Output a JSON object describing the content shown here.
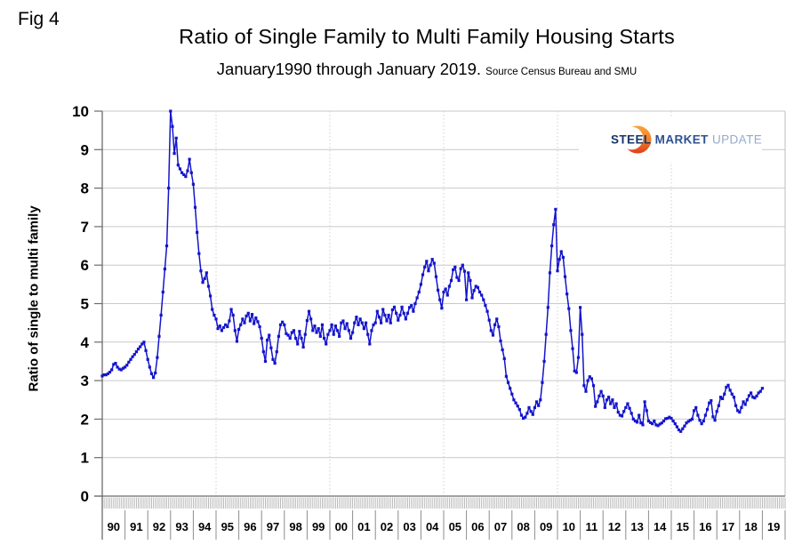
{
  "figure_label": "Fig 4",
  "title": "Ratio of Single Family to Multi Family Housing Starts",
  "subtitle": "January1990 through January 2019.",
  "source_note": "Source Census Bureau and SMU",
  "logo": {
    "word1": "STEEL",
    "word2": "MARKET",
    "word3": "UPDATE",
    "navy": "#17356b",
    "mid_blue": "#2c5191",
    "light_blue": "#94aacb",
    "orange_top": "#f8a53e",
    "orange_mid": "#ef7d24",
    "orange_bottom": "#e03c1c"
  },
  "y_axis": {
    "label": "Ratio of single to multi family",
    "ticks": [
      0,
      1,
      2,
      3,
      4,
      5,
      6,
      7,
      8,
      9,
      10
    ]
  },
  "chart_data": {
    "type": "line",
    "title": "Ratio of Single Family to Multi Family Housing Starts",
    "subtitle": "January1990 through January 2019. Source Census Bureau and SMU",
    "ylabel": "Ratio of single to multi family",
    "ylim": [
      0,
      10
    ],
    "y_ticks": [
      0,
      1,
      2,
      3,
      4,
      5,
      6,
      7,
      8,
      9,
      10
    ],
    "x_start": "1990-01",
    "x_end": "2019-01",
    "frequency": "monthly",
    "x_labels": [
      "90",
      "91",
      "92",
      "93",
      "94",
      "95",
      "96",
      "97",
      "98",
      "99",
      "00",
      "01",
      "02",
      "03",
      "04",
      "05",
      "06",
      "07",
      "08",
      "09",
      "10",
      "11",
      "12",
      "13",
      "14",
      "15",
      "16",
      "17",
      "18",
      "19"
    ],
    "grid": {
      "horizontal": "solid at each integer",
      "vertical_dotted_years": [
        1995,
        2000,
        2005,
        2010,
        2015
      ]
    },
    "legend": "none",
    "series_color": "#1414cc",
    "values": [
      3.12,
      3.15,
      3.15,
      3.18,
      3.22,
      3.28,
      3.42,
      3.45,
      3.35,
      3.3,
      3.28,
      3.32,
      3.35,
      3.4,
      3.48,
      3.55,
      3.62,
      3.68,
      3.75,
      3.82,
      3.88,
      3.95,
      4.0,
      3.78,
      3.55,
      3.35,
      3.18,
      3.08,
      3.2,
      3.6,
      4.15,
      4.7,
      5.3,
      5.9,
      6.5,
      8.0,
      10.0,
      9.6,
      8.9,
      9.3,
      8.6,
      8.5,
      8.4,
      8.35,
      8.3,
      8.45,
      8.75,
      8.4,
      8.1,
      7.5,
      6.85,
      6.3,
      5.85,
      5.55,
      5.65,
      5.8,
      5.45,
      5.2,
      4.85,
      4.7,
      4.6,
      4.35,
      4.42,
      4.3,
      4.38,
      4.45,
      4.4,
      4.55,
      4.85,
      4.7,
      4.3,
      4.02,
      4.33,
      4.45,
      4.6,
      4.5,
      4.68,
      4.75,
      4.55,
      4.72,
      4.48,
      4.63,
      4.53,
      4.4,
      4.1,
      3.75,
      3.5,
      4.05,
      4.18,
      3.85,
      3.55,
      3.45,
      3.75,
      4.15,
      4.45,
      4.52,
      4.45,
      4.22,
      4.18,
      4.1,
      4.25,
      4.3,
      4.1,
      3.95,
      4.28,
      4.1,
      3.87,
      4.2,
      4.56,
      4.8,
      4.6,
      4.3,
      4.42,
      4.25,
      4.35,
      4.15,
      4.45,
      4.1,
      3.95,
      4.2,
      4.3,
      4.45,
      4.2,
      4.42,
      4.3,
      4.15,
      4.5,
      4.55,
      4.35,
      4.48,
      4.3,
      4.1,
      4.25,
      4.5,
      4.65,
      4.45,
      4.6,
      4.5,
      4.35,
      4.5,
      4.2,
      3.95,
      4.3,
      4.45,
      4.5,
      4.8,
      4.65,
      4.5,
      4.85,
      4.7,
      4.55,
      4.7,
      4.5,
      4.84,
      4.91,
      4.75,
      4.57,
      4.7,
      4.91,
      4.75,
      4.6,
      4.75,
      4.9,
      4.95,
      4.8,
      5.0,
      5.15,
      5.3,
      5.5,
      5.75,
      5.95,
      6.1,
      5.85,
      6.0,
      6.15,
      6.05,
      5.7,
      5.35,
      5.1,
      4.88,
      5.3,
      5.38,
      5.22,
      5.45,
      5.6,
      5.88,
      5.95,
      5.68,
      5.6,
      5.91,
      6.0,
      5.84,
      5.1,
      5.8,
      5.6,
      5.15,
      5.34,
      5.45,
      5.42,
      5.3,
      5.22,
      5.1,
      4.95,
      4.8,
      4.57,
      4.3,
      4.18,
      4.45,
      4.6,
      4.4,
      4.03,
      3.8,
      3.57,
      3.11,
      2.95,
      2.8,
      2.65,
      2.5,
      2.42,
      2.34,
      2.25,
      2.1,
      2.02,
      2.05,
      2.15,
      2.3,
      2.2,
      2.12,
      2.3,
      2.45,
      2.35,
      2.5,
      2.95,
      3.5,
      4.2,
      4.9,
      5.8,
      6.5,
      7.05,
      7.45,
      5.85,
      6.15,
      6.35,
      6.2,
      5.7,
      5.25,
      4.87,
      4.3,
      3.83,
      3.25,
      3.21,
      3.6,
      4.9,
      4.2,
      2.87,
      2.72,
      3.0,
      3.1,
      3.05,
      2.87,
      2.33,
      2.45,
      2.6,
      2.72,
      2.6,
      2.3,
      2.5,
      2.57,
      2.4,
      2.5,
      2.3,
      2.4,
      2.18,
      2.1,
      2.08,
      2.2,
      2.3,
      2.4,
      2.28,
      2.15,
      2.0,
      1.95,
      1.92,
      2.1,
      1.9,
      1.85,
      2.45,
      2.22,
      1.95,
      1.91,
      1.88,
      1.95,
      1.85,
      1.83,
      1.87,
      1.9,
      1.95,
      2.01,
      2.02,
      2.05,
      2.02,
      1.95,
      1.88,
      1.8,
      1.72,
      1.68,
      1.75,
      1.82,
      1.9,
      1.94,
      1.97,
      2.0,
      2.22,
      2.3,
      2.1,
      1.97,
      1.88,
      1.95,
      2.1,
      2.25,
      2.42,
      2.48,
      2.06,
      1.97,
      2.2,
      2.35,
      2.57,
      2.53,
      2.65,
      2.83,
      2.88,
      2.75,
      2.65,
      2.57,
      2.35,
      2.22,
      2.18,
      2.3,
      2.45,
      2.38,
      2.5,
      2.61,
      2.68,
      2.57,
      2.55,
      2.6,
      2.68,
      2.72,
      2.8
    ]
  }
}
